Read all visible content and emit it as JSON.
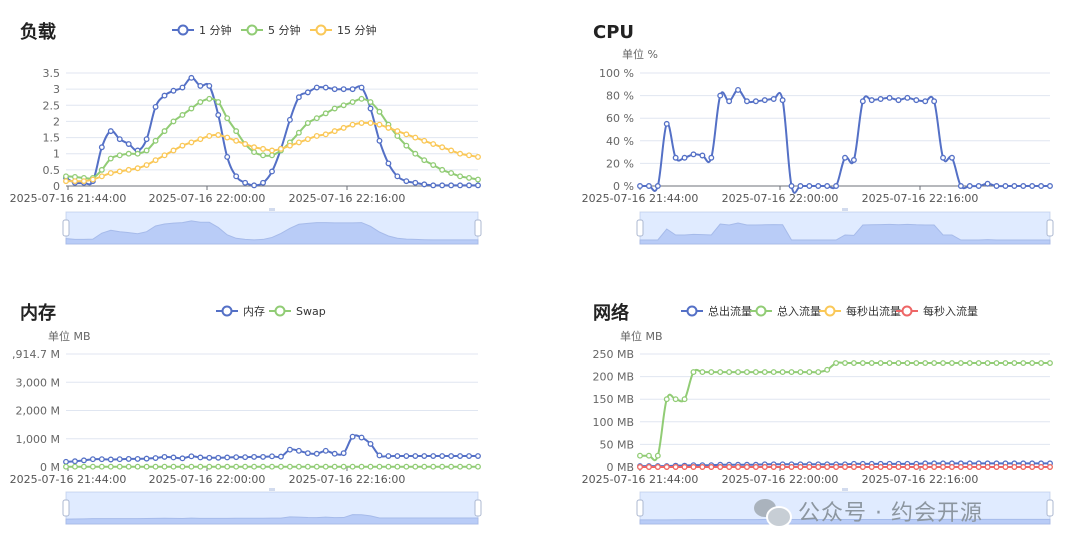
{
  "colors": {
    "blue": "#5470c6",
    "green": "#91cc75",
    "yellow": "#fac858",
    "red": "#ee6666"
  },
  "x_ticks": [
    "2025-07-16 21:44:00",
    "2025-07-16 22:00:00",
    "2025-07-16 22:16:00"
  ],
  "load": {
    "title": "负载",
    "legend": [
      "1 分钟",
      "5 分钟",
      "15 分钟"
    ],
    "unit": "",
    "y_ticks": [
      "0",
      "0.5",
      "1",
      "1.5",
      "2",
      "2.5",
      "3",
      "3.5"
    ],
    "chart_data": {
      "type": "line",
      "ylim": [
        0,
        3.5
      ],
      "series": [
        {
          "name": "1 分钟",
          "color": "blue",
          "values": [
            0.25,
            0.1,
            0.1,
            0.15,
            1.2,
            1.7,
            1.45,
            1.3,
            1.1,
            1.45,
            2.45,
            2.8,
            2.95,
            3.05,
            3.35,
            3.1,
            3.1,
            2.2,
            0.9,
            0.3,
            0.1,
            0.02,
            0.1,
            0.45,
            1.15,
            2.05,
            2.75,
            2.9,
            3.05,
            3.05,
            3.0,
            3.0,
            3.0,
            3.05,
            2.4,
            1.4,
            0.7,
            0.3,
            0.15,
            0.1,
            0.05,
            0.02,
            0.02,
            0.02,
            0.02,
            0.02,
            0.02
          ]
        },
        {
          "name": "5 分钟",
          "color": "green",
          "values": [
            0.3,
            0.28,
            0.25,
            0.25,
            0.5,
            0.85,
            0.95,
            1.0,
            1.0,
            1.1,
            1.4,
            1.7,
            2.0,
            2.2,
            2.4,
            2.6,
            2.7,
            2.6,
            2.1,
            1.7,
            1.3,
            1.05,
            0.95,
            0.95,
            1.1,
            1.35,
            1.65,
            1.95,
            2.1,
            2.25,
            2.4,
            2.5,
            2.6,
            2.7,
            2.6,
            2.3,
            1.9,
            1.55,
            1.25,
            1.0,
            0.8,
            0.65,
            0.5,
            0.4,
            0.3,
            0.25,
            0.2
          ]
        },
        {
          "name": "15 分钟",
          "color": "yellow",
          "values": [
            0.15,
            0.15,
            0.15,
            0.2,
            0.3,
            0.4,
            0.45,
            0.5,
            0.55,
            0.65,
            0.8,
            0.95,
            1.1,
            1.25,
            1.35,
            1.45,
            1.55,
            1.58,
            1.5,
            1.4,
            1.3,
            1.2,
            1.15,
            1.1,
            1.15,
            1.25,
            1.35,
            1.45,
            1.55,
            1.6,
            1.7,
            1.8,
            1.9,
            1.95,
            1.95,
            1.9,
            1.8,
            1.7,
            1.6,
            1.5,
            1.4,
            1.3,
            1.2,
            1.1,
            1.0,
            0.95,
            0.9
          ]
        }
      ]
    }
  },
  "cpu": {
    "title": "CPU",
    "unit": "单位 %",
    "y_ticks": [
      "0 %",
      "20 %",
      "40 %",
      "60 %",
      "80 %",
      "100 %"
    ],
    "chart_data": {
      "type": "line",
      "ylim": [
        0,
        100
      ],
      "series": [
        {
          "name": "CPU",
          "color": "blue",
          "values": [
            0,
            0,
            0,
            55,
            25,
            25,
            28,
            27,
            25,
            80,
            75,
            85,
            75,
            75,
            76,
            77,
            76,
            0,
            0,
            0,
            0,
            0,
            0,
            25,
            23,
            75,
            76,
            77,
            78,
            76,
            78,
            76,
            75,
            75,
            25,
            25,
            0,
            0,
            0,
            2,
            0,
            0,
            0,
            0,
            0,
            0,
            0
          ]
        }
      ]
    }
  },
  "memory": {
    "title": "内存",
    "legend": [
      "内存",
      "Swap"
    ],
    "unit": "单位 MB",
    "y_ticks": [
      "0 M",
      "1,000 M",
      "2,000 M",
      "3,000 M",
      ",914.7 M"
    ],
    "chart_data": {
      "type": "line",
      "ylim": [
        0,
        3914.7
      ],
      "series": [
        {
          "name": "内存",
          "color": "blue",
          "values": [
            180,
            200,
            230,
            270,
            270,
            260,
            270,
            280,
            280,
            290,
            310,
            350,
            330,
            300,
            370,
            330,
            320,
            320,
            330,
            340,
            340,
            350,
            350,
            370,
            360,
            600,
            560,
            480,
            460,
            560,
            460,
            480,
            1050,
            1020,
            800,
            400,
            380,
            380,
            380,
            380,
            380,
            380,
            380,
            380,
            380,
            380,
            380
          ]
        },
        {
          "name": "Swap",
          "color": "green",
          "values": [
            10,
            10,
            10,
            10,
            10,
            10,
            10,
            10,
            10,
            10,
            10,
            10,
            10,
            10,
            10,
            10,
            10,
            10,
            10,
            10,
            10,
            10,
            10,
            10,
            10,
            10,
            10,
            10,
            10,
            10,
            10,
            10,
            10,
            10,
            10,
            10,
            10,
            10,
            10,
            10,
            10,
            10,
            10,
            10,
            10,
            10,
            10
          ]
        }
      ]
    }
  },
  "network": {
    "title": "网络",
    "legend": [
      "总出流量",
      "总入流量",
      "每秒出流量",
      "每秒入流量"
    ],
    "unit": "单位 MB",
    "y_ticks": [
      "0 MB",
      "50 MB",
      "100 MB",
      "150 MB",
      "200 MB",
      "250 MB"
    ],
    "chart_data": {
      "type": "line",
      "ylim": [
        0,
        250
      ],
      "series": [
        {
          "name": "总出流量",
          "color": "blue",
          "values": [
            2,
            2,
            2,
            2,
            3,
            3,
            4,
            4,
            4,
            5,
            5,
            5,
            5,
            5,
            6,
            6,
            6,
            6,
            6,
            6,
            6,
            6,
            6,
            6,
            7,
            7,
            7,
            7,
            7,
            7,
            7,
            7,
            8,
            8,
            8,
            8,
            8,
            8,
            8,
            8,
            8,
            8,
            8,
            8,
            8,
            8,
            8
          ]
        },
        {
          "name": "总入流量",
          "color": "green",
          "values": [
            25,
            25,
            25,
            150,
            150,
            150,
            210,
            210,
            210,
            210,
            210,
            210,
            210,
            210,
            210,
            210,
            210,
            210,
            210,
            210,
            210,
            215,
            230,
            230,
            230,
            230,
            230,
            230,
            230,
            230,
            230,
            230,
            230,
            230,
            230,
            230,
            230,
            230,
            230,
            230,
            230,
            230,
            230,
            230,
            230,
            230,
            230
          ]
        },
        {
          "name": "每秒出流量",
          "color": "yellow",
          "values": [
            0,
            0,
            0,
            0,
            0,
            0,
            0,
            0,
            0,
            0,
            0,
            0,
            0,
            0,
            0,
            0,
            0,
            0,
            0,
            0,
            0,
            0,
            0,
            0,
            0,
            0,
            0,
            0,
            0,
            0,
            0,
            0,
            0,
            0,
            0,
            0,
            0,
            0,
            0,
            0,
            0,
            0,
            0,
            0,
            0,
            0,
            0
          ]
        },
        {
          "name": "每秒入流量",
          "color": "red",
          "values": [
            0,
            0,
            0,
            0,
            0,
            0,
            0,
            0,
            0,
            0,
            0,
            0,
            0,
            0,
            0,
            0,
            0,
            0,
            0,
            0,
            0,
            0,
            0,
            0,
            0,
            0,
            0,
            0,
            0,
            0,
            0,
            0,
            0,
            0,
            0,
            0,
            0,
            0,
            0,
            0,
            0,
            0,
            0,
            0,
            0,
            0,
            0
          ]
        }
      ]
    }
  },
  "watermark": {
    "text": "公众号 · 约会开源"
  }
}
